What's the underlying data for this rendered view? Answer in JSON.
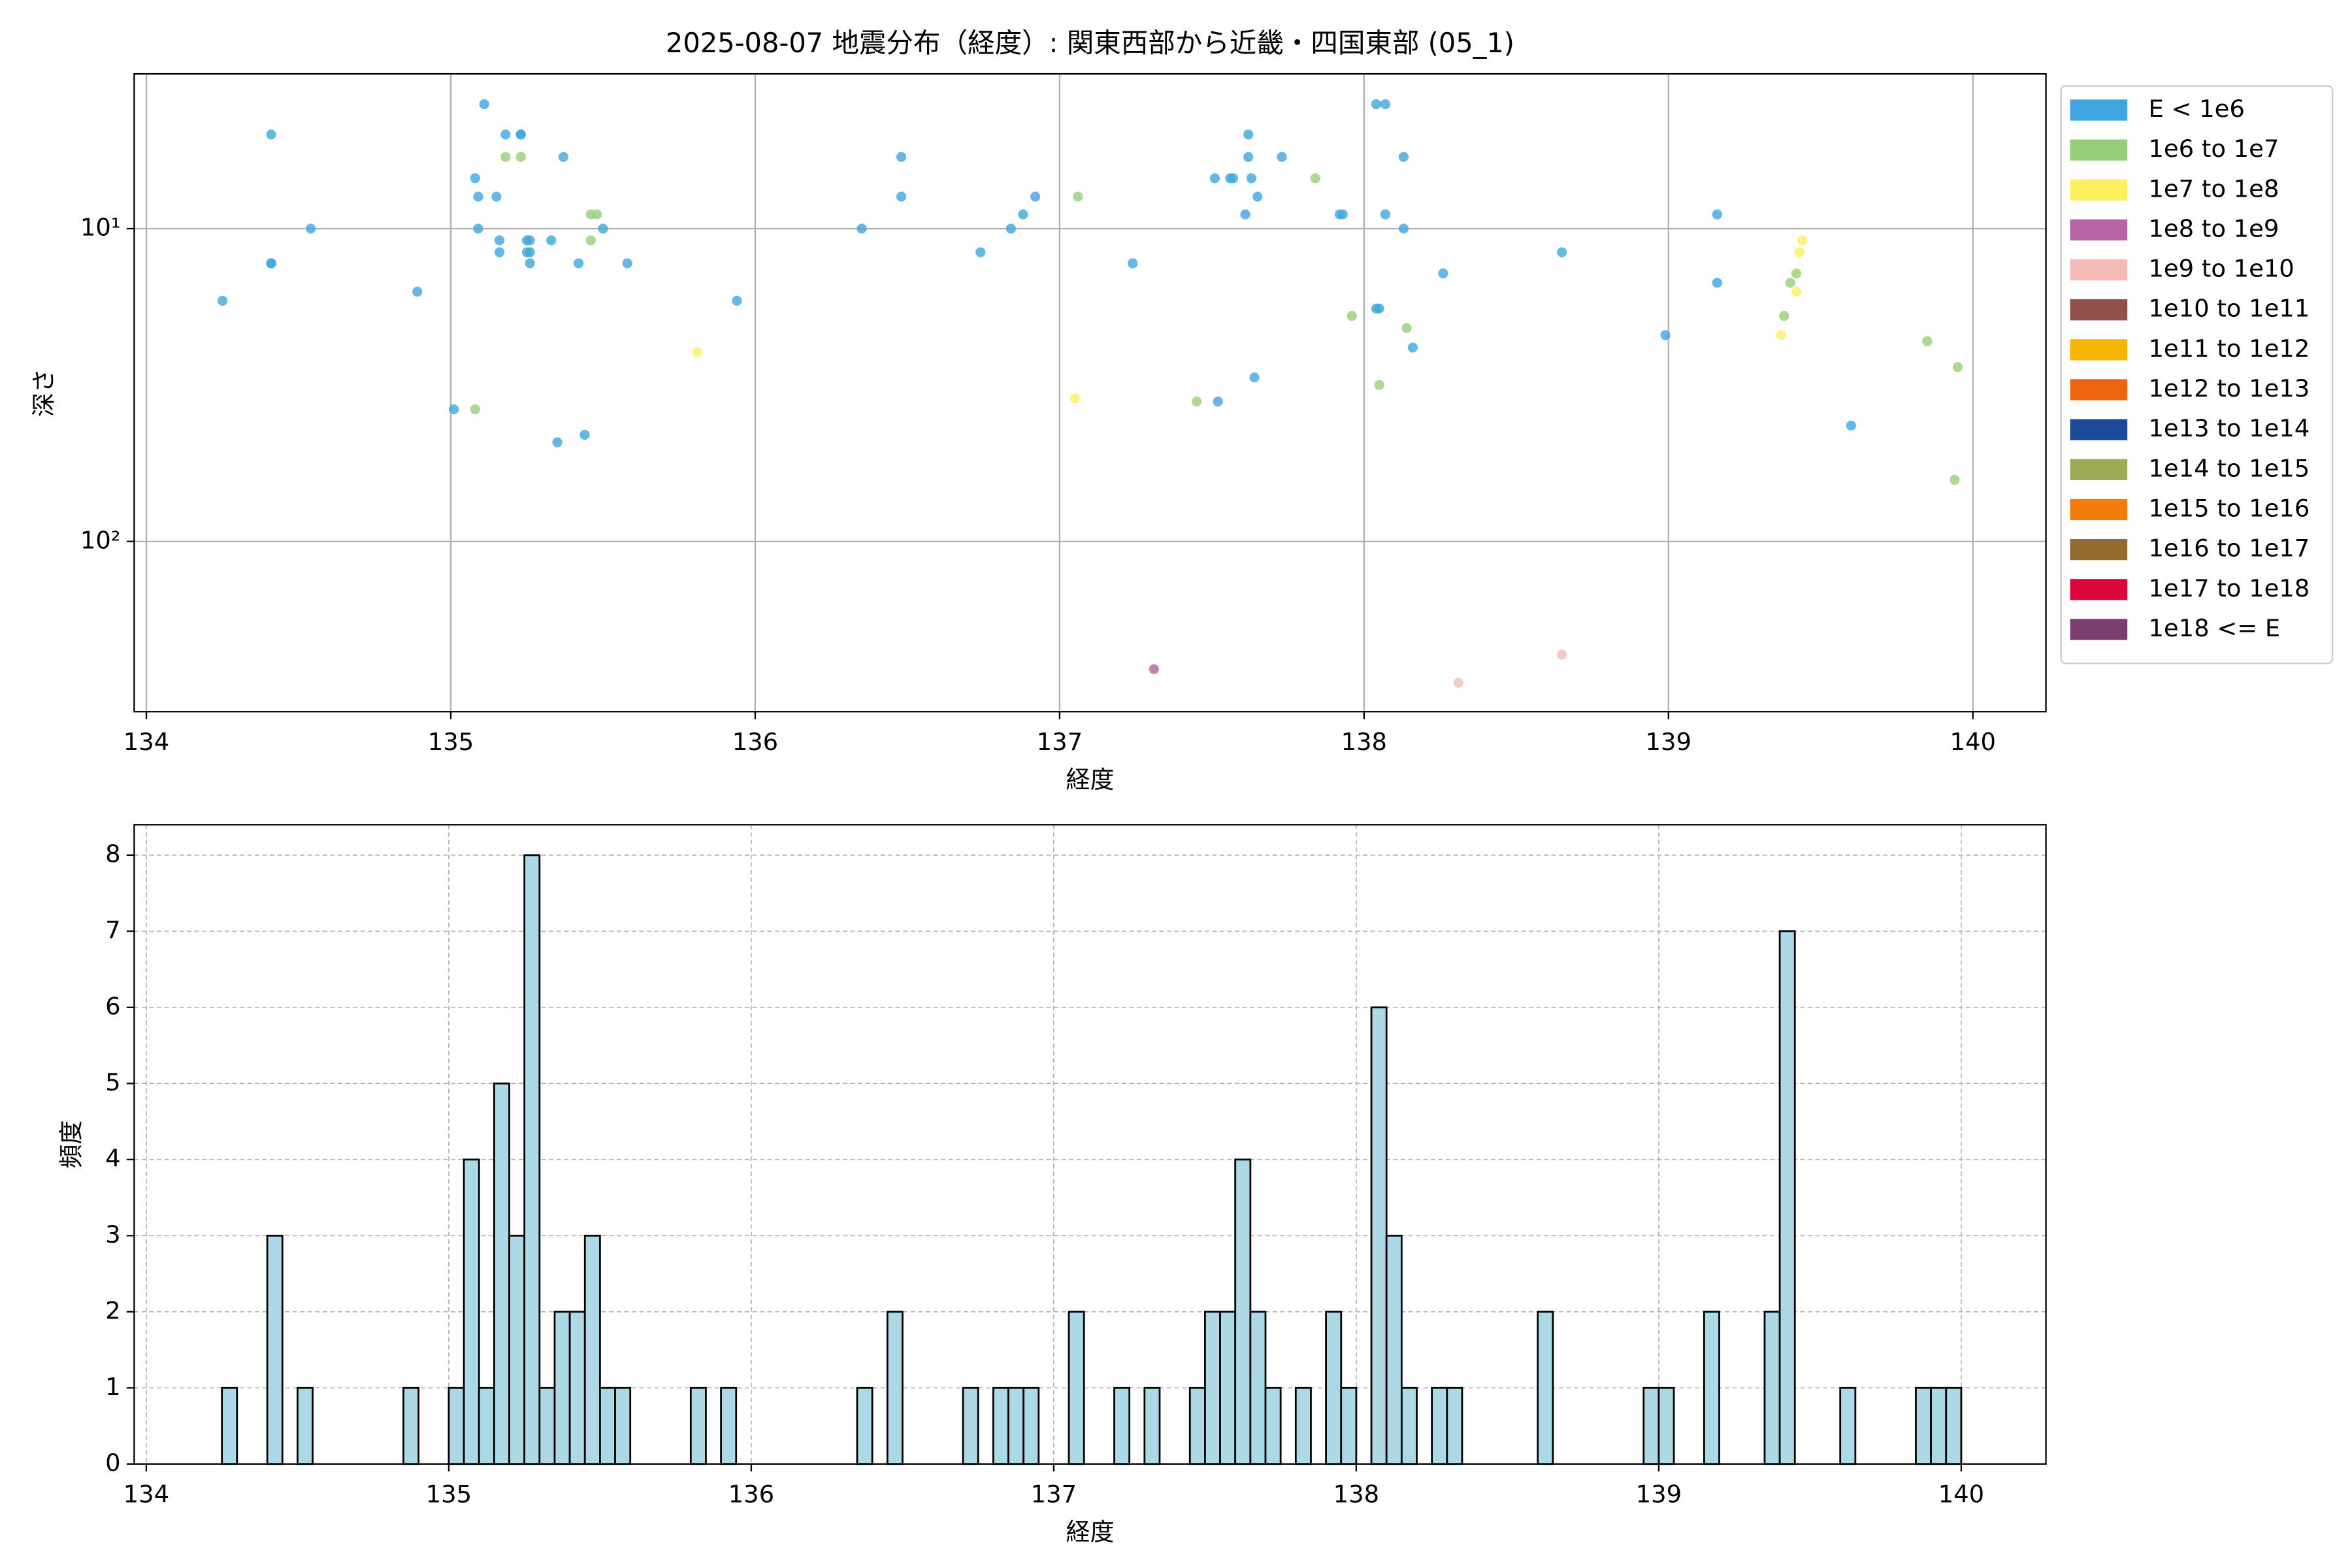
{
  "chart_data": [
    {
      "type": "scatter",
      "title": "2025-08-07 地震分布（経度）: 関東西部から近畿・四国東部 (05_1)",
      "xlabel": "経度",
      "ylabel": "深さ",
      "xlim": [
        133.96,
        140.24
      ],
      "xticks": [
        134,
        135,
        136,
        137,
        138,
        139,
        140
      ],
      "ylim": [
        350,
        3.2
      ],
      "log_y": true,
      "yticks": [
        {
          "value": 10,
          "label": "10¹"
        },
        {
          "value": 100,
          "label": "10²"
        }
      ],
      "grid": true,
      "grid_style": "solid",
      "legend": "outside-upper-right",
      "series": [
        {
          "name": "E < 1e6",
          "color": "#3fa6e0",
          "x": [
            134.25,
            134.41,
            134.41,
            134.41,
            134.54,
            134.89,
            135.01,
            135.11,
            135.08,
            135.09,
            135.09,
            135.15,
            135.16,
            135.16,
            135.18,
            135.23,
            135.23,
            135.25,
            135.25,
            135.26,
            135.26,
            135.26,
            135.33,
            135.37,
            135.42,
            135.5,
            135.44,
            135.35,
            135.58,
            135.94,
            136.35,
            136.48,
            136.48,
            136.74,
            136.84,
            136.88,
            136.92,
            137.24,
            137.51,
            137.56,
            137.57,
            137.62,
            137.62,
            137.63,
            137.65,
            137.61,
            137.73,
            137.92,
            137.93,
            138.04,
            138.07,
            138.07,
            138.13,
            138.13,
            138.04,
            138.05,
            138.16,
            138.26,
            137.52,
            137.64,
            138.65,
            138.99,
            139.16,
            139.16,
            139.6
          ],
          "values": [
            17.0,
            5.0,
            12.9,
            12.9,
            10,
            15.9,
            37.8,
            4.0,
            6.9,
            7.9,
            10,
            7.9,
            10.9,
            11.9,
            5.0,
            5.0,
            5.0,
            10.9,
            11.9,
            10.9,
            11.9,
            12.9,
            10.9,
            5.9,
            12.9,
            10,
            45.6,
            48.2,
            12.9,
            17.0,
            10,
            5.9,
            7.9,
            11.9,
            10,
            9.0,
            7.9,
            12.9,
            6.9,
            6.9,
            6.9,
            5.0,
            5.9,
            6.9,
            7.9,
            9.0,
            5.9,
            9.0,
            9.0,
            4.0,
            4.0,
            9.0,
            10,
            5.9,
            18.0,
            18.0,
            24.0,
            13.9,
            35.7,
            29.9,
            11.9,
            21.9,
            14.9,
            9.0,
            42.6
          ]
        },
        {
          "name": "1e6 to 1e7",
          "color": "#96cf78",
          "x": [
            135.18,
            135.23,
            135.46,
            135.48,
            135.46,
            135.08,
            137.06,
            137.45,
            137.84,
            137.96,
            138.14,
            138.05,
            139.38,
            139.4,
            139.42,
            139.85,
            139.95,
            139.94
          ],
          "values": [
            5.9,
            5.9,
            9.0,
            9.0,
            10.9,
            37.8,
            7.9,
            35.7,
            6.9,
            19.0,
            20.8,
            31.6,
            19.0,
            14.9,
            13.9,
            22.9,
            27.7,
            63.5
          ]
        },
        {
          "name": "1e7 to 1e8",
          "color": "#fcef60",
          "x": [
            135.81,
            137.05,
            139.37,
            139.42,
            139.43,
            139.44
          ],
          "values": [
            24.8,
            34.9,
            21.9,
            15.9,
            11.9,
            10.9
          ]
        },
        {
          "name": "1e8 to 1e9",
          "color": "#b663a8",
          "x": [
            137.31
          ],
          "values": [
            256
          ]
        },
        {
          "name": "1e9 to 1e10",
          "color": "#f3bcb8",
          "x": [
            138.31,
            138.65
          ],
          "values": [
            283,
            230
          ]
        },
        {
          "name": "1e10 to 1e11",
          "color": "#93504b",
          "x": [],
          "values": []
        },
        {
          "name": "1e11 to 1e12",
          "color": "#f7b500",
          "x": [],
          "values": []
        },
        {
          "name": "1e12 to 1e13",
          "color": "#ee6510",
          "x": [],
          "values": []
        },
        {
          "name": "1e13 to 1e14",
          "color": "#1c4a98",
          "x": [],
          "values": []
        },
        {
          "name": "1e14 to 1e15",
          "color": "#9cac55",
          "x": [],
          "values": []
        },
        {
          "name": "1e15 to 1e16",
          "color": "#f27d0c",
          "x": [],
          "values": []
        },
        {
          "name": "1e16 to 1e17",
          "color": "#936b2e",
          "x": [],
          "values": []
        },
        {
          "name": "1e17 to 1e18",
          "color": "#d9073b",
          "x": [],
          "values": []
        },
        {
          "name": "1e18 <= E",
          "color": "#7a3f6f",
          "x": [],
          "values": []
        }
      ]
    },
    {
      "type": "histogram",
      "xlabel": "経度",
      "ylabel": "頻度",
      "xlim": [
        133.96,
        140.28
      ],
      "xticks": [
        134,
        135,
        136,
        137,
        138,
        139,
        140
      ],
      "ylim": [
        0,
        8.4
      ],
      "yticks": [
        0,
        1,
        2,
        3,
        4,
        5,
        6,
        7,
        8
      ],
      "grid": true,
      "grid_style": "dashed",
      "color": "#add8e6",
      "edgecolor": "#000000",
      "bins": [
        134.25,
        134.3,
        134.35,
        134.4,
        134.45,
        134.5,
        134.55,
        134.6,
        134.65,
        134.7,
        134.75,
        134.8,
        134.85,
        134.9,
        134.95,
        135,
        135.05,
        135.1,
        135.15,
        135.2,
        135.25,
        135.3,
        135.35,
        135.4,
        135.45,
        135.5,
        135.55,
        135.6,
        135.65,
        135.7,
        135.75,
        135.8,
        135.85,
        135.9,
        135.95,
        136,
        136.05,
        136.1,
        136.15,
        136.2,
        136.25,
        136.3,
        136.35,
        136.4,
        136.45,
        136.5,
        136.55,
        136.6,
        136.65,
        136.7,
        136.75,
        136.8,
        136.85,
        136.9,
        136.95,
        137,
        137.05,
        137.1,
        137.15,
        137.2,
        137.25,
        137.3,
        137.35,
        137.4,
        137.45,
        137.5,
        137.55,
        137.6,
        137.65,
        137.7,
        137.75,
        137.8,
        137.85,
        137.9,
        137.95,
        138,
        138.05,
        138.1,
        138.15,
        138.2,
        138.25,
        138.3,
        138.35,
        138.4,
        138.45,
        138.5,
        138.55,
        138.6,
        138.65,
        138.7,
        138.75,
        138.8,
        138.85,
        138.9,
        138.95,
        139,
        139.05,
        139.1,
        139.15,
        139.2,
        139.25,
        139.3,
        139.35,
        139.4,
        139.45,
        139.5,
        139.55,
        139.6,
        139.65,
        139.7,
        139.75,
        139.8,
        139.85,
        139.9,
        139.95,
        140
      ],
      "values": [
        1,
        0,
        0,
        3,
        0,
        1,
        0,
        0,
        0,
        0,
        0,
        0,
        1,
        0,
        0,
        1,
        4,
        1,
        5,
        3,
        8,
        1,
        2,
        2,
        3,
        1,
        1,
        0,
        0,
        0,
        0,
        1,
        0,
        1,
        0,
        0,
        0,
        0,
        0,
        0,
        0,
        0,
        1,
        0,
        2,
        0,
        0,
        0,
        0,
        1,
        0,
        1,
        1,
        1,
        0,
        0,
        2,
        0,
        0,
        1,
        0,
        1,
        0,
        0,
        1,
        2,
        2,
        4,
        2,
        1,
        0,
        1,
        0,
        2,
        1,
        0,
        6,
        3,
        1,
        0,
        1,
        1,
        0,
        0,
        0,
        0,
        0,
        2,
        0,
        0,
        0,
        0,
        0,
        0,
        1,
        1,
        0,
        0,
        2,
        0,
        0,
        0,
        2,
        7,
        0,
        0,
        0,
        1,
        0,
        0,
        0,
        0,
        1,
        1,
        1
      ]
    }
  ]
}
